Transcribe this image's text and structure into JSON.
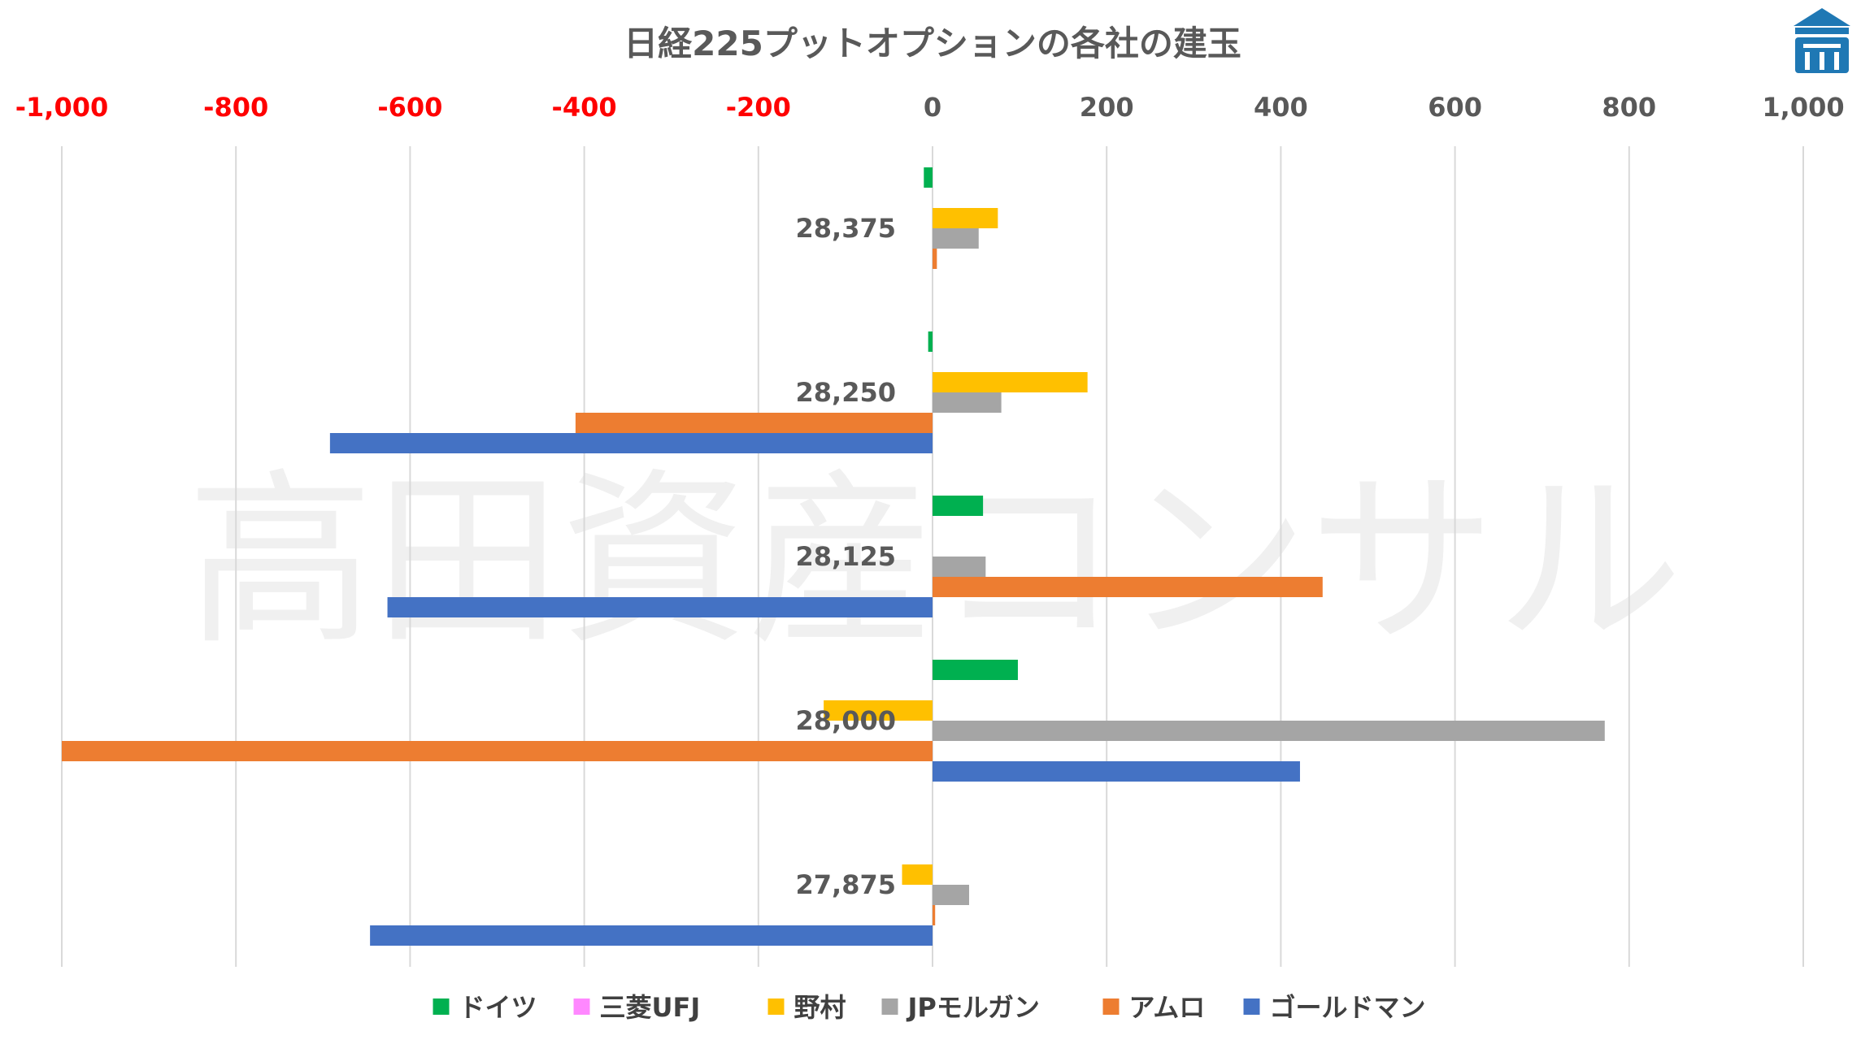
{
  "logo": {
    "name": "logo-icon",
    "color": "#1f78b4"
  },
  "watermark": "高田資産コンサル",
  "chart_data": {
    "type": "bar",
    "orientation": "horizontal",
    "title": "日経225プットオプションの各社の建玉",
    "xlim": [
      -1000,
      1000
    ],
    "x_ticks": [
      -1000,
      -800,
      -600,
      -400,
      -200,
      0,
      200,
      400,
      600,
      800,
      1000
    ],
    "x_tick_labels": [
      "-1,000",
      "-800",
      "-600",
      "-400",
      "-200",
      "0",
      "200",
      "400",
      "600",
      "800",
      "1,000"
    ],
    "negative_tick_color": "#ff0000",
    "positive_tick_color": "#595959",
    "grid": "vertical",
    "legend_position": "bottom",
    "categories": [
      "28,375",
      "28,250",
      "28,125",
      "28,000",
      "27,875"
    ],
    "series": [
      {
        "name": "ドイツ",
        "color": "#00b050",
        "values": [
          -10,
          -5,
          58,
          98,
          0
        ]
      },
      {
        "name": "三菱UFJ",
        "color": "#ff88ff",
        "values": [
          0,
          0,
          0,
          0,
          0
        ]
      },
      {
        "name": "野村",
        "color": "#ffc000",
        "values": [
          75,
          178,
          0,
          -125,
          -35
        ]
      },
      {
        "name": "JPモルガン",
        "color": "#a5a5a5",
        "values": [
          53,
          79,
          61,
          772,
          42
        ]
      },
      {
        "name": "アムロ",
        "color": "#ed7d31",
        "values": [
          5,
          -410,
          448,
          -1000,
          3
        ]
      },
      {
        "name": "ゴールドマン",
        "color": "#4472c4",
        "values": [
          0,
          -692,
          -626,
          422,
          -646
        ]
      }
    ]
  }
}
